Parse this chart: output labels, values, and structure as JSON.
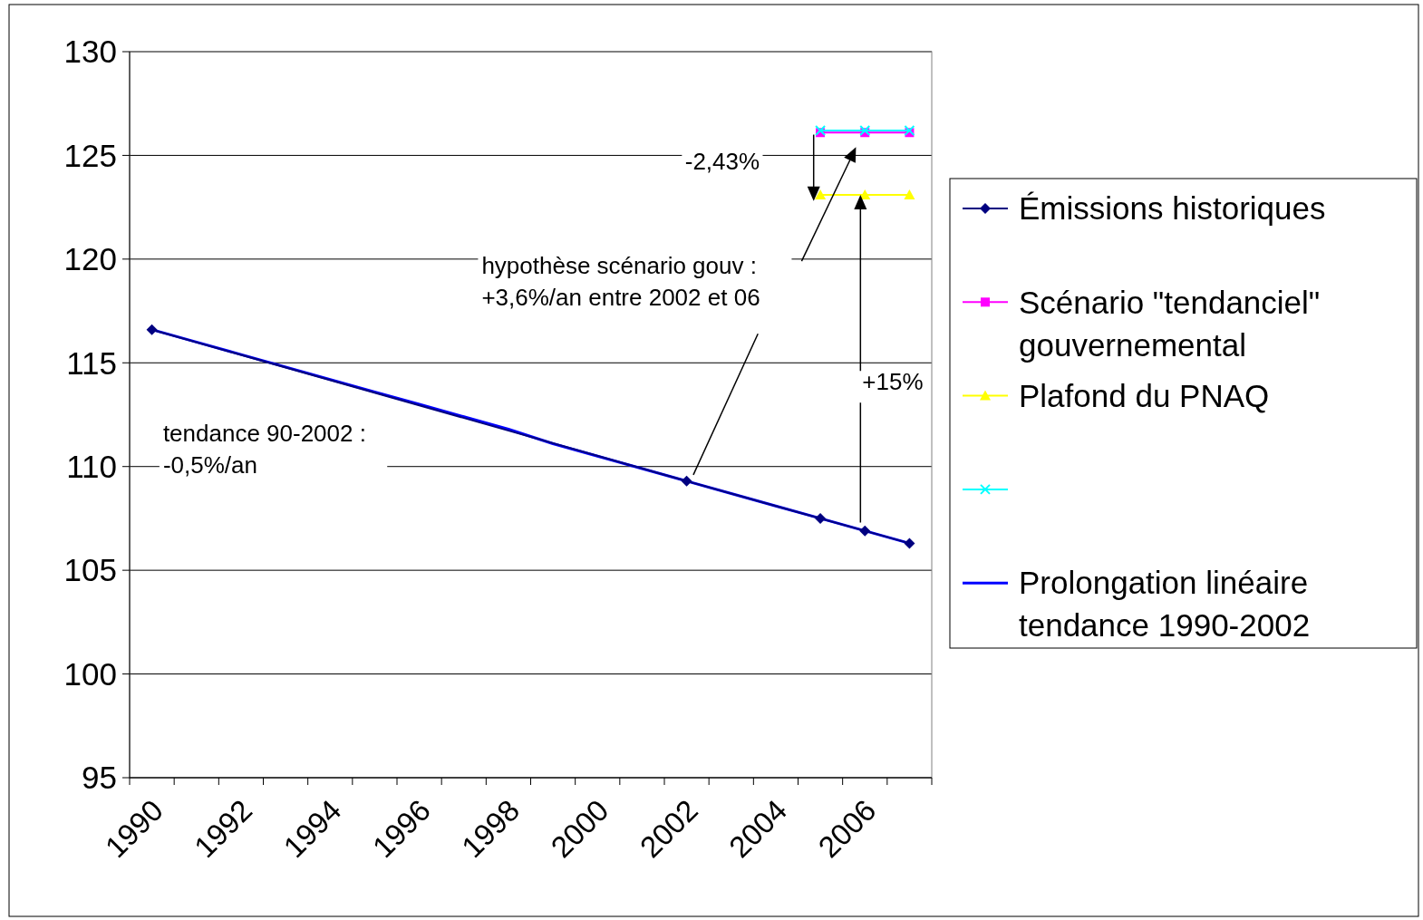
{
  "chart_data": {
    "type": "line",
    "categories": [
      "1990",
      null,
      "1992",
      null,
      "1994",
      null,
      "1996",
      null,
      "1998",
      null,
      "2000",
      null,
      "2002",
      null,
      "2004",
      null,
      "2006",
      null
    ],
    "series": [
      {
        "name": "Émissions historiques",
        "color": "#000080",
        "marker": "diamond",
        "values": [
          116.6,
          null,
          null,
          null,
          null,
          null,
          null,
          null,
          null,
          null,
          null,
          null,
          109.3,
          null,
          null,
          107.5,
          106.9,
          106.3
        ]
      },
      {
        "name": "Scénario \"tendanciel\" gouvernemental",
        "color": "#ff00ff",
        "marker": "square",
        "values": [
          null,
          null,
          null,
          null,
          null,
          null,
          null,
          null,
          null,
          null,
          null,
          null,
          null,
          null,
          null,
          126.1,
          126.1,
          126.1
        ]
      },
      {
        "name": "Plafond du PNAQ",
        "color": "#ffff00",
        "marker": "triangle",
        "values": [
          null,
          null,
          null,
          null,
          null,
          null,
          null,
          null,
          null,
          null,
          null,
          null,
          null,
          null,
          null,
          123.1,
          123.1,
          123.1
        ]
      },
      {
        "color": "#00ffff",
        "marker": "cross",
        "values": [
          null,
          null,
          null,
          null,
          null,
          null,
          null,
          null,
          null,
          null,
          null,
          null,
          null,
          null,
          null,
          126.2,
          126.2,
          126.2
        ]
      },
      {
        "name": "Prolongation linéaire tendance 1990-2002",
        "color": "#0000ff",
        "marker": "none",
        "values": [
          116.6,
          116.0,
          115.4,
          114.8,
          114.2,
          113.6,
          113.0,
          112.4,
          111.8,
          111.1,
          110.5,
          109.9,
          109.3,
          108.7,
          108.1,
          107.5,
          106.9,
          106.3
        ]
      }
    ],
    "ylim": [
      95,
      130
    ],
    "yticks": [
      95,
      100,
      105,
      110,
      115,
      120,
      125,
      130
    ],
    "grid": "y",
    "legend": "right",
    "annotations": [
      "-2,43%",
      "hypothèse scénario gouv :\n+3,6%/an entre 2002 et 06",
      "tendance 90-2002 :\n-0,5%/an",
      "+15%"
    ]
  }
}
